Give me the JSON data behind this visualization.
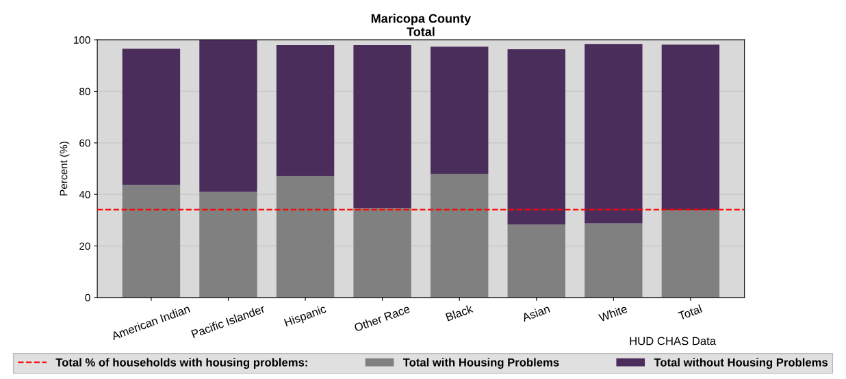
{
  "chart_data": {
    "type": "bar",
    "title": "Maricopa County\nTotal",
    "ylabel": "Percent (%)",
    "categories": [
      "American Indian",
      "Pacific Islander",
      "Hispanic",
      "Other Race",
      "Black",
      "Asian",
      "White",
      "Total"
    ],
    "stacked": true,
    "series": [
      {
        "name": "Total with Housing Problems",
        "color": "#808080",
        "values": [
          43.7,
          41.0,
          47.2,
          34.7,
          48.0,
          28.3,
          28.8,
          33.9
        ]
      },
      {
        "name": "Total without Housing Problems",
        "color": "#4b2d5c",
        "values": [
          52.8,
          59.0,
          50.7,
          63.2,
          49.3,
          68.0,
          69.6,
          64.2
        ]
      }
    ],
    "ylim": [
      0,
      100
    ],
    "yticks": [
      0,
      20,
      40,
      60,
      80,
      100
    ],
    "ref_lines": [
      {
        "axis": "y",
        "value": 34.1,
        "label": "Total % of households with housing problems:",
        "color": "#ff0000",
        "line_style": "dashed"
      }
    ],
    "annotations": [
      "HUD CHAS Data"
    ],
    "grid": "y",
    "legend": "bottom"
  }
}
